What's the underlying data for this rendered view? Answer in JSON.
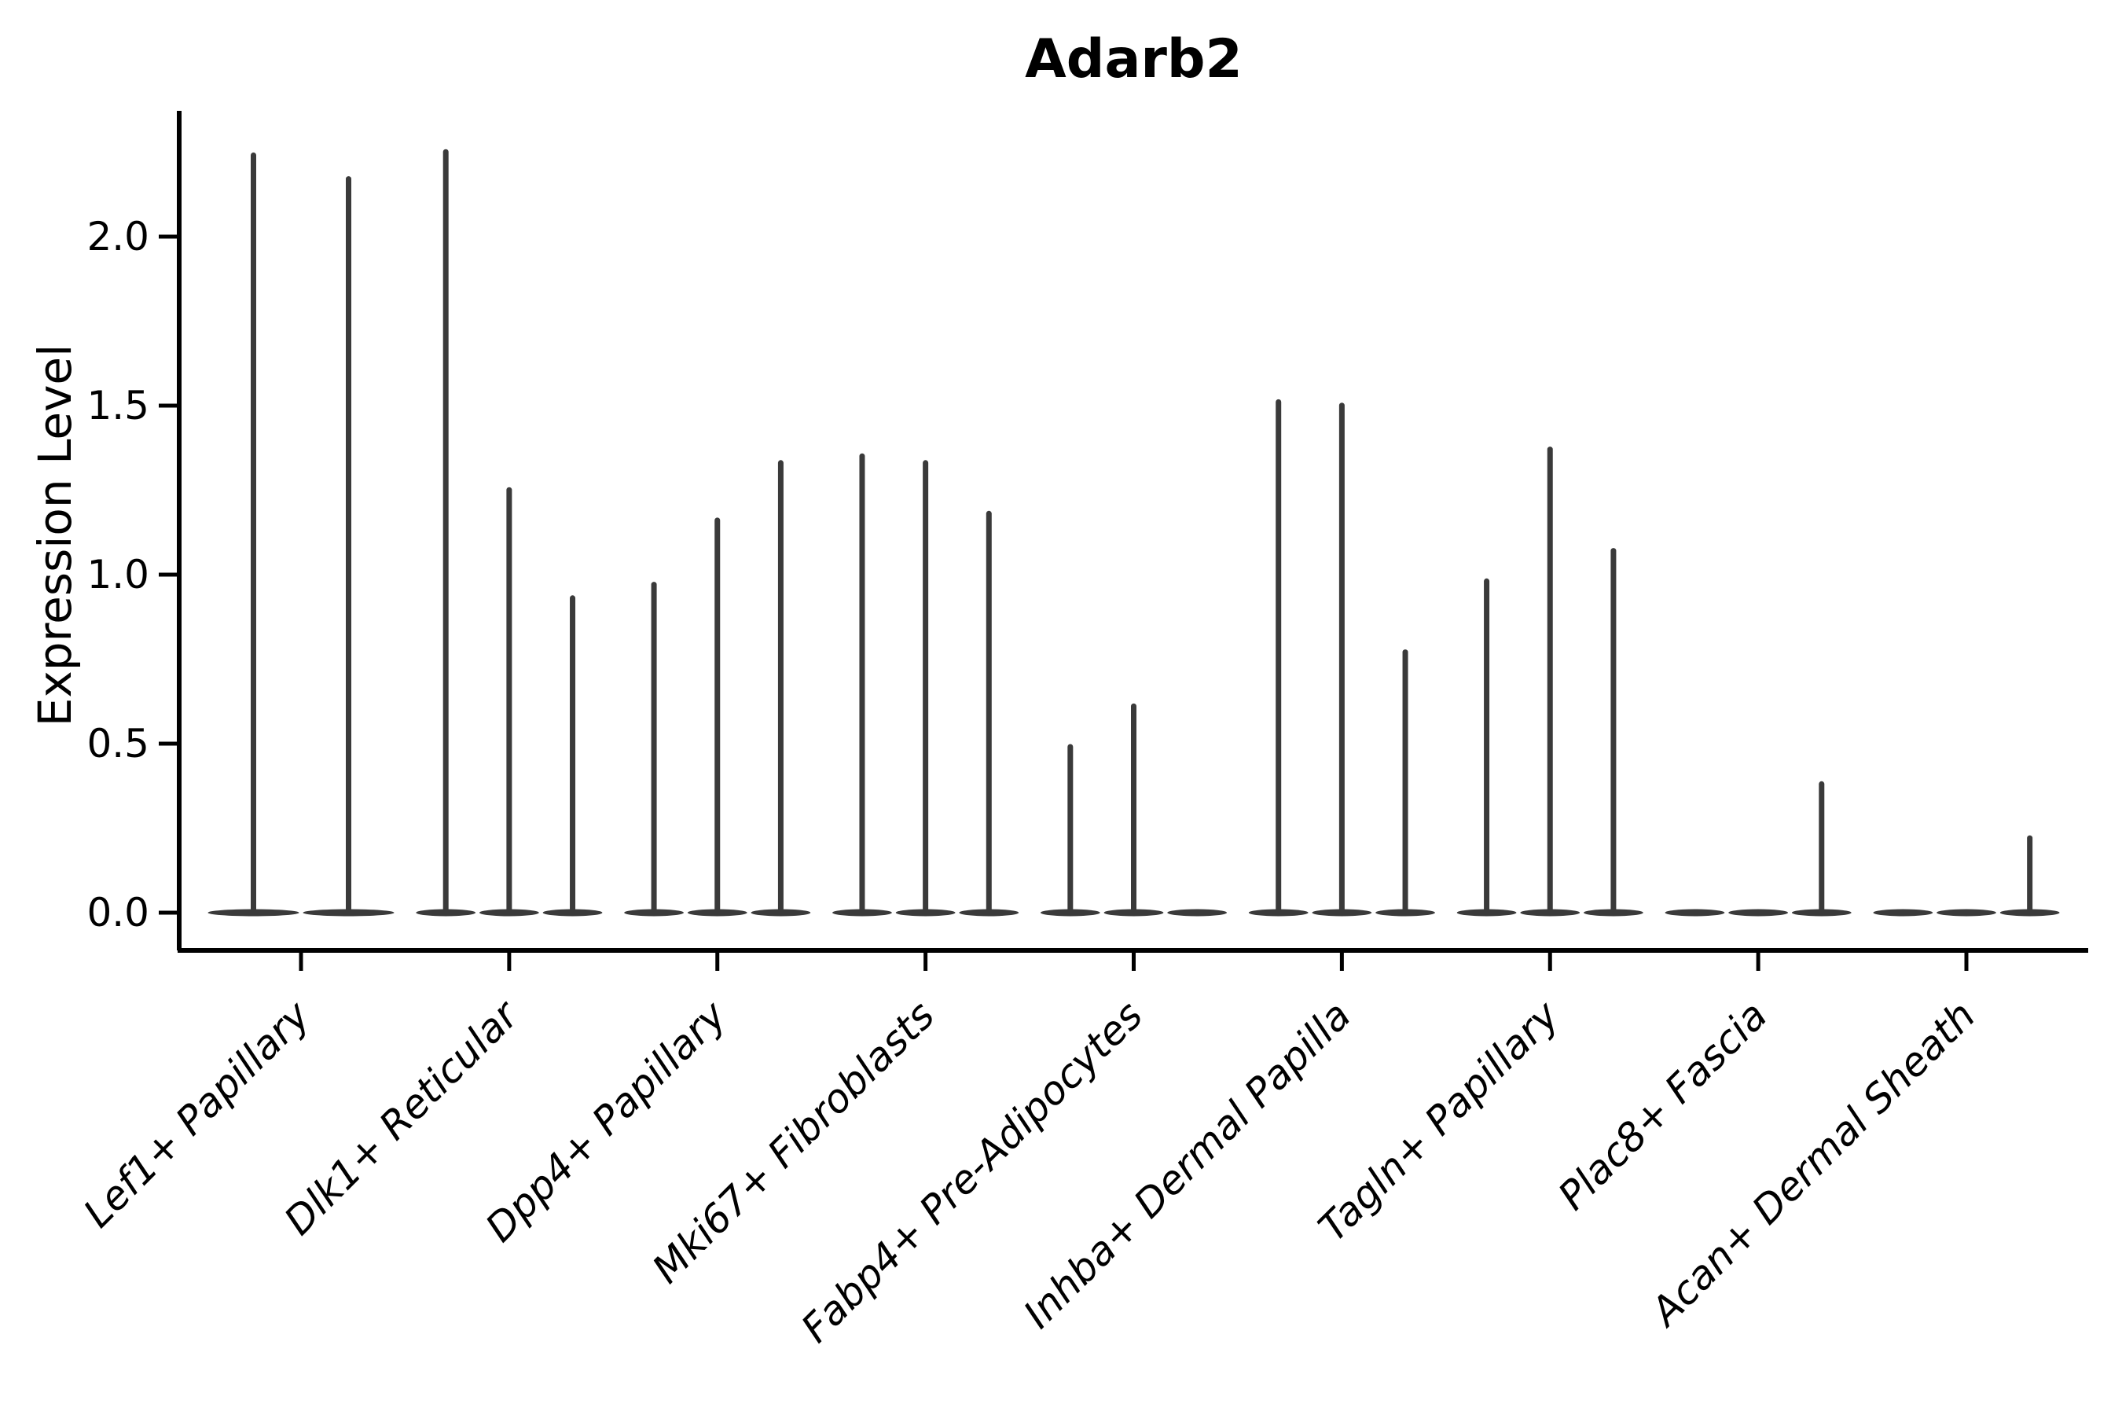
{
  "figure": {
    "title": "Adarb2",
    "y_axis_label": "Expression Level"
  },
  "colors": {
    "violin": "#3a3a3a",
    "axis": "#000000",
    "text": "#000000",
    "background": "#ffffff"
  },
  "chart_data": {
    "type": "violin",
    "title": "Adarb2",
    "xlabel": "",
    "ylabel": "Expression Level",
    "yticks": [
      0.0,
      0.5,
      1.0,
      1.5,
      2.0
    ],
    "ytick_labels": [
      "0.0",
      "0.5",
      "1.0",
      "1.5",
      "2.0"
    ],
    "ylim": [
      -0.11,
      2.37
    ],
    "grid": false,
    "legend": "none",
    "categories": [
      "Lef1+ Papillary",
      "Dlk1+ Reticular",
      "Dpp4+ Papillary",
      "Mki67+ Fibroblasts",
      "Fabp4+ Pre-Adipocytes",
      "Inhba+ Dermal Papilla",
      "Tagln+ Papillary",
      "Plac8+ Fascia",
      "Acan+ Dermal Sheath"
    ],
    "series": [
      {
        "category": "Lef1+ Papillary",
        "spike_maxima": [
          2.25,
          2.18
        ]
      },
      {
        "category": "Dlk1+ Reticular",
        "spike_maxima": [
          2.26,
          1.26,
          0.94
        ]
      },
      {
        "category": "Dpp4+ Papillary",
        "spike_maxima": [
          0.98,
          1.17,
          1.34
        ]
      },
      {
        "category": "Mki67+ Fibroblasts",
        "spike_maxima": [
          1.36,
          1.34,
          1.19
        ]
      },
      {
        "category": "Fabp4+ Pre-Adipocytes",
        "spike_maxima": [
          0.5,
          0.62,
          0
        ]
      },
      {
        "category": "Inhba+ Dermal Papilla",
        "spike_maxima": [
          1.52,
          1.51,
          0.78
        ]
      },
      {
        "category": "Tagln+ Papillary",
        "spike_maxima": [
          0.99,
          1.38,
          1.08
        ]
      },
      {
        "category": "Plac8+ Fascia",
        "spike_maxima": [
          0,
          0,
          0.39
        ]
      },
      {
        "category": "Acan+ Dermal Sheath",
        "spike_maxima": [
          0,
          0,
          0.23
        ]
      }
    ],
    "baseline_value": 0.0
  }
}
